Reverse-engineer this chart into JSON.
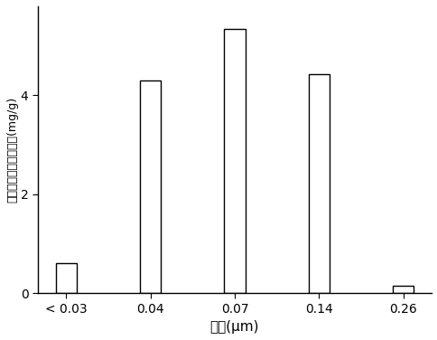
{
  "categories": [
    "< 0.03",
    "0.04",
    "0.07",
    "0.14",
    "0.26"
  ],
  "values": [
    0.6,
    4.3,
    5.35,
    4.42,
    0.15
  ],
  "bar_color": "#ffffff",
  "bar_edgecolor": "#000000",
  "bar_width": 0.25,
  "title": "",
  "xlabel": "粒径(μm)",
  "ylabel": "单位粒相物紫苏释放量(mg/g)",
  "ylim": [
    0,
    5.8
  ],
  "yticks": [
    0,
    2,
    4
  ],
  "background_color": "#ffffff",
  "xlabel_fontsize": 11,
  "ylabel_fontsize": 9,
  "tick_fontsize": 10
}
